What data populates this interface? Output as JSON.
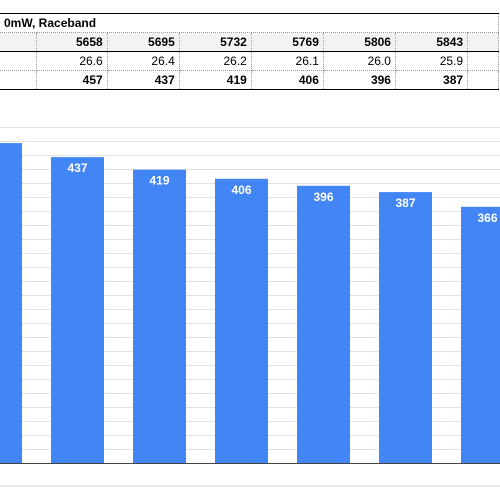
{
  "table": {
    "title": "0mW, Raceband",
    "header": [
      "",
      "5658",
      "5695",
      "5732",
      "5769",
      "5806",
      "5843",
      ""
    ],
    "row1": [
      "",
      "26.6",
      "26.4",
      "26.2",
      "26.1",
      "26.0",
      "25.9",
      ""
    ],
    "row2": [
      "",
      "457",
      "437",
      "419",
      "406",
      "396",
      "387",
      ""
    ]
  },
  "chart_data": {
    "type": "bar",
    "values": [
      457,
      437,
      419,
      406,
      396,
      387,
      366
    ],
    "labels": [
      "",
      "437",
      "419",
      "406",
      "396",
      "387",
      "366"
    ],
    "bar_color": "#4285f4",
    "grid": true
  }
}
